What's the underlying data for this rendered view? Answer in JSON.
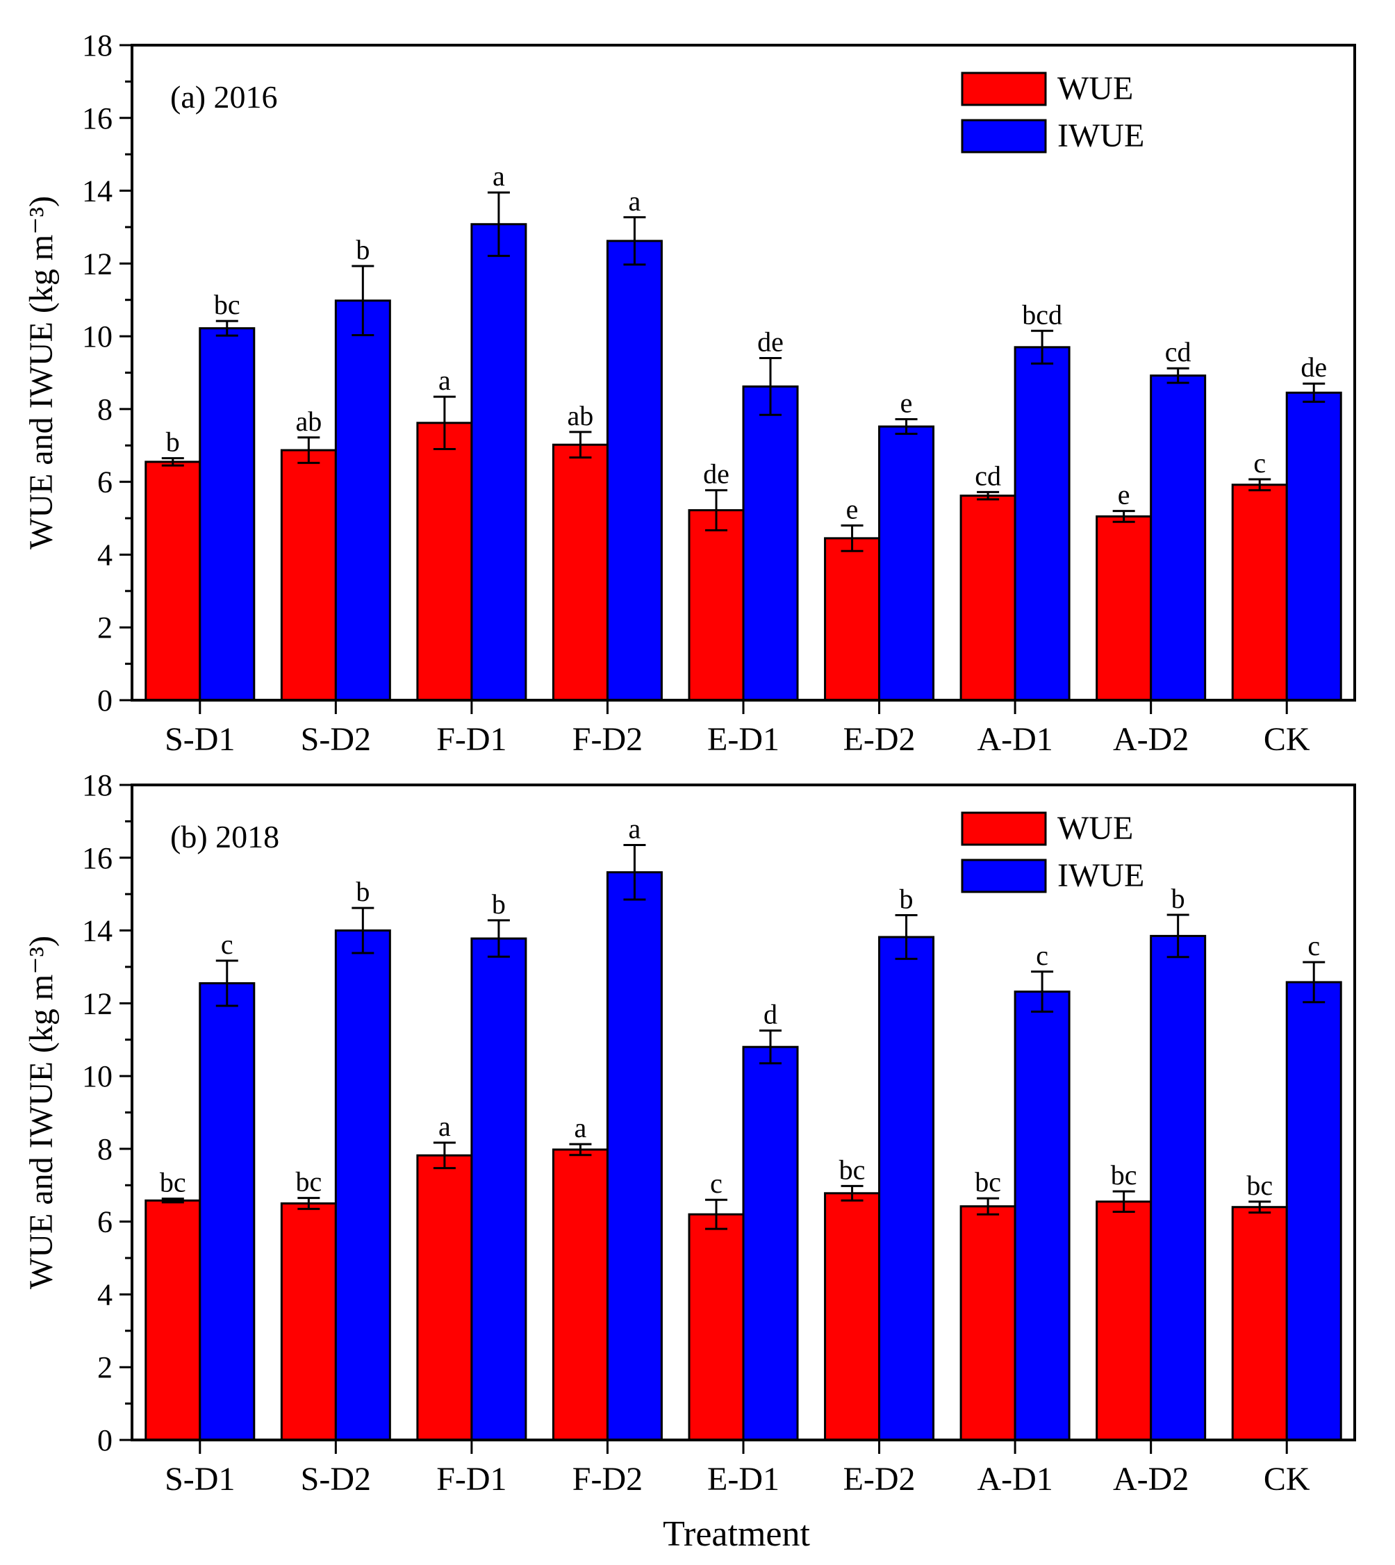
{
  "chart_data": [
    {
      "type": "bar",
      "title": "(a) 2016",
      "ylabel": "WUE and IWUE (kg m⁻³)",
      "xlabel": "",
      "ylim": [
        0,
        18
      ],
      "yticks": [
        0,
        2,
        4,
        6,
        8,
        10,
        12,
        14,
        16,
        18
      ],
      "categories": [
        "S-D1",
        "S-D2",
        "F-D1",
        "F-D2",
        "E-D1",
        "E-D2",
        "A-D1",
        "A-D2",
        "CK"
      ],
      "legend_position": "top-right",
      "series": [
        {
          "name": "WUE",
          "color": "#ff0000",
          "values": [
            6.55,
            6.87,
            7.62,
            7.02,
            5.22,
            4.45,
            5.62,
            5.05,
            5.92
          ],
          "errors": [
            0.1,
            0.35,
            0.72,
            0.35,
            0.55,
            0.35,
            0.1,
            0.15,
            0.15
          ],
          "letters": [
            "b",
            "ab",
            "a",
            "ab",
            "de",
            "e",
            "cd",
            "e",
            "c"
          ]
        },
        {
          "name": "IWUE",
          "color": "#0000ff",
          "values": [
            10.22,
            10.98,
            13.08,
            12.62,
            8.62,
            7.52,
            9.7,
            8.92,
            8.45
          ],
          "errors": [
            0.2,
            0.95,
            0.87,
            0.65,
            0.78,
            0.2,
            0.45,
            0.2,
            0.25
          ],
          "letters": [
            "bc",
            "b",
            "a",
            "a",
            "de",
            "e",
            "bcd",
            "cd",
            "de"
          ]
        }
      ]
    },
    {
      "type": "bar",
      "title": "(b) 2018",
      "ylabel": "WUE and IWUE (kg m⁻³)",
      "xlabel": "Treatment",
      "ylim": [
        0,
        18
      ],
      "yticks": [
        0,
        2,
        4,
        6,
        8,
        10,
        12,
        14,
        16,
        18
      ],
      "categories": [
        "S-D1",
        "S-D2",
        "F-D1",
        "F-D2",
        "E-D1",
        "E-D2",
        "A-D1",
        "A-D2",
        "CK"
      ],
      "legend_position": "top-right",
      "series": [
        {
          "name": "WUE",
          "color": "#ff0000",
          "values": [
            6.58,
            6.5,
            7.82,
            7.98,
            6.2,
            6.78,
            6.42,
            6.55,
            6.4
          ],
          "errors": [
            0.05,
            0.15,
            0.35,
            0.15,
            0.4,
            0.2,
            0.22,
            0.28,
            0.15
          ],
          "letters": [
            "bc",
            "bc",
            "a",
            "a",
            "c",
            "bc",
            "bc",
            "bc",
            "bc"
          ]
        },
        {
          "name": "IWUE",
          "color": "#0000ff",
          "values": [
            12.55,
            14.0,
            13.78,
            15.6,
            10.8,
            13.82,
            12.32,
            13.85,
            12.58
          ],
          "errors": [
            0.62,
            0.62,
            0.5,
            0.75,
            0.45,
            0.6,
            0.55,
            0.58,
            0.55
          ],
          "letters": [
            "c",
            "b",
            "b",
            "a",
            "d",
            "b",
            "c",
            "b",
            "c"
          ]
        }
      ]
    }
  ]
}
